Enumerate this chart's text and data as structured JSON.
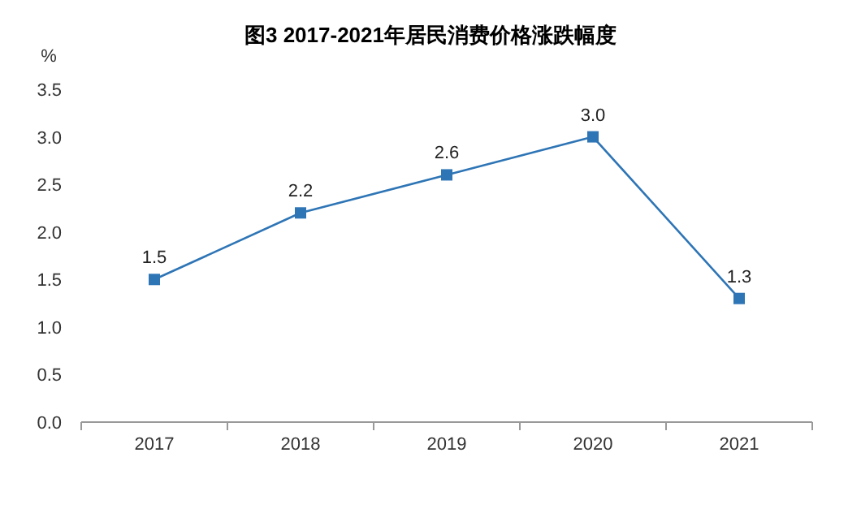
{
  "chart_data": {
    "type": "line",
    "title": "图3 2017-2021年居民消费价格涨跌幅度",
    "ylabel": "%",
    "categories": [
      "2017",
      "2018",
      "2019",
      "2020",
      "2021"
    ],
    "values": [
      1.5,
      2.2,
      2.6,
      3.0,
      1.3
    ],
    "value_labels": [
      "1.5",
      "2.2",
      "2.6",
      "3.0",
      "1.3"
    ],
    "color": "#2e75b6",
    "marker": "square",
    "ylim": [
      0,
      3.5
    ],
    "yticks": [
      {
        "value": 0,
        "label": "0.0"
      },
      {
        "value": 0.5,
        "label": "0.5"
      },
      {
        "value": 1,
        "label": "1.0"
      },
      {
        "value": 1.5,
        "label": "1.5"
      },
      {
        "value": 2,
        "label": "2.0"
      },
      {
        "value": 2.5,
        "label": "2.5"
      },
      {
        "value": 3,
        "label": "3.0"
      },
      {
        "value": 3.5,
        "label": "3.5"
      }
    ]
  }
}
